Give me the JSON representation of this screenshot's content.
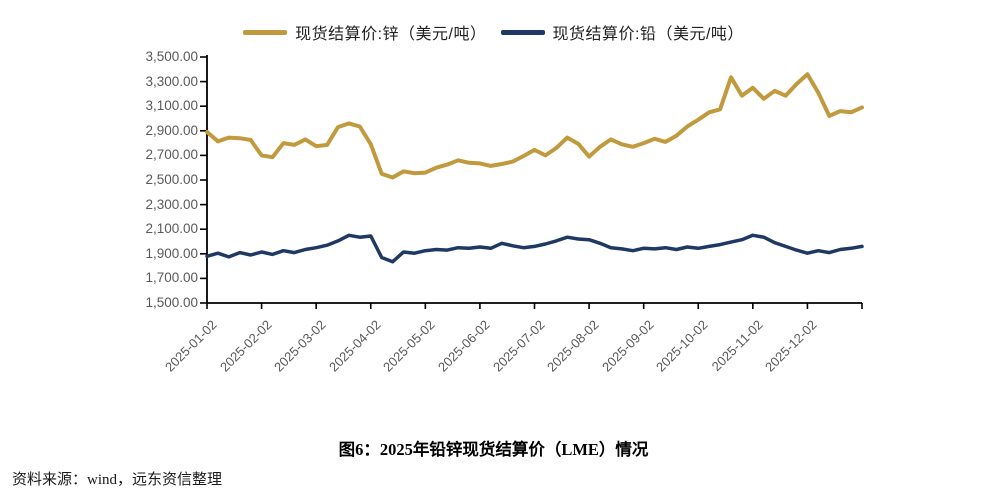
{
  "legend": {
    "items": [
      {
        "label": "现货结算价:锌（美元/吨）",
        "color": "#C09A3C"
      },
      {
        "label": "现货结算价:铅（美元/吨）",
        "color": "#1F3864"
      }
    ]
  },
  "caption": {
    "title": "图6：2025年铅锌现货结算价（LME）情况"
  },
  "source_note": "资料来源：wind，远东资信整理",
  "chart_data": {
    "type": "line",
    "title": "图6：2025年铅锌现货结算价（LME）情况",
    "grid": false,
    "legend_position": "top",
    "x_axis": {
      "tick_labels": [
        "2025-01-02",
        "2025-02-02",
        "2025-03-02",
        "2025-04-02",
        "2025-05-02",
        "2025-06-02",
        "2025-07-02",
        "2025-08-02",
        "2025-09-02",
        "2025-10-02",
        "2025-11-02",
        "2025-12-02"
      ]
    },
    "y_axis": {
      "min": 1500,
      "max": 3500,
      "step": 200,
      "tick_labels": [
        "3,500.00",
        "3,300.00",
        "3,100.00",
        "2,900.00",
        "2,700.00",
        "2,500.00",
        "2,300.00",
        "2,100.00",
        "1,900.00",
        "1,700.00",
        "1,500.00"
      ]
    },
    "x_months_span": 12,
    "series": [
      {
        "name": "现货结算价:锌（美元/吨）",
        "color": "#C09A3C",
        "width": 4,
        "values": [
          2890,
          2815,
          2845,
          2840,
          2825,
          2700,
          2685,
          2800,
          2785,
          2830,
          2775,
          2785,
          2930,
          2960,
          2935,
          2790,
          2550,
          2520,
          2570,
          2555,
          2560,
          2600,
          2625,
          2660,
          2640,
          2635,
          2615,
          2630,
          2650,
          2695,
          2745,
          2700,
          2760,
          2845,
          2795,
          2690,
          2770,
          2830,
          2790,
          2770,
          2800,
          2835,
          2810,
          2860,
          2935,
          2990,
          3050,
          3075,
          3335,
          3185,
          3250,
          3160,
          3225,
          3185,
          3280,
          3360,
          3210,
          3020,
          3060,
          3050,
          3090
        ]
      },
      {
        "name": "现货结算价:铅（美元/吨）",
        "color": "#1F3864",
        "width": 3.5,
        "values": [
          1880,
          1905,
          1875,
          1910,
          1890,
          1915,
          1895,
          1925,
          1910,
          1935,
          1950,
          1970,
          2005,
          2050,
          2035,
          2045,
          1870,
          1835,
          1915,
          1905,
          1925,
          1935,
          1930,
          1950,
          1945,
          1955,
          1945,
          1985,
          1965,
          1950,
          1960,
          1980,
          2005,
          2035,
          2020,
          2015,
          1985,
          1950,
          1940,
          1925,
          1945,
          1940,
          1950,
          1935,
          1955,
          1945,
          1960,
          1975,
          1995,
          2015,
          2050,
          2035,
          1990,
          1960,
          1930,
          1905,
          1925,
          1910,
          1935,
          1945,
          1960
        ]
      }
    ]
  }
}
